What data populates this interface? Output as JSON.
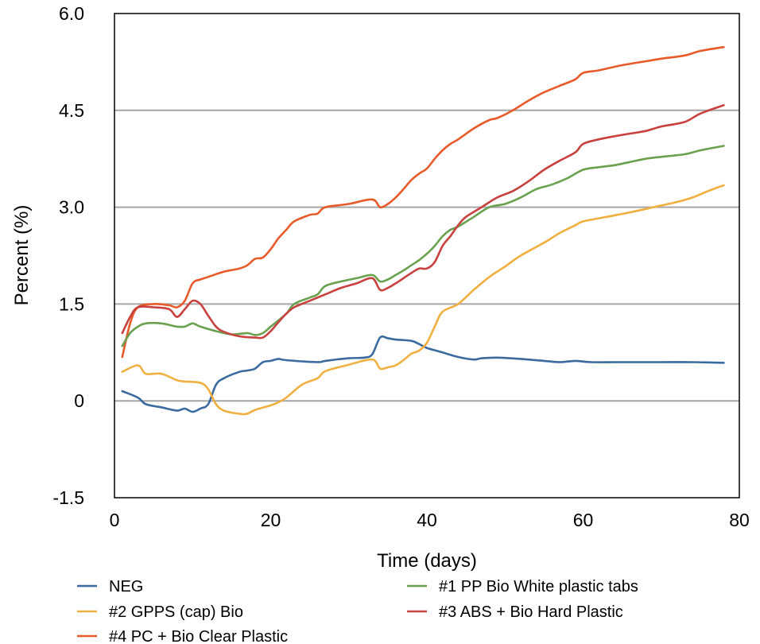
{
  "chart_data": {
    "type": "line",
    "xlabel": "Time (days)",
    "ylabel": "Percent (%)",
    "xlim": [
      0,
      80
    ],
    "ylim": [
      -1.5,
      6.0
    ],
    "x_ticks": [
      "0",
      "20",
      "40",
      "60",
      "80"
    ],
    "x_tick_values": [
      0,
      20,
      40,
      60,
      80
    ],
    "y_ticks": [
      "6.0",
      "4.5",
      "3.0",
      "1.5",
      "0",
      "-1.5"
    ],
    "y_tick_values": [
      6.0,
      4.5,
      3.0,
      1.5,
      0,
      -1.5
    ],
    "grid": "horizontal",
    "legend_position": "bottom",
    "series": [
      {
        "name": "NEG",
        "color": "#3b6aa0",
        "x": [
          1,
          3,
          4,
          6,
          8,
          9,
          10,
          11,
          12,
          13,
          14,
          16,
          17,
          18,
          19,
          20,
          21,
          22,
          26,
          27,
          30,
          32,
          33,
          34,
          35,
          36,
          38,
          39,
          40,
          42,
          44,
          46,
          47,
          49,
          52,
          55,
          57,
          59,
          61,
          65,
          70,
          74,
          78
        ],
        "y": [
          0.15,
          0.05,
          -0.05,
          -0.1,
          -0.15,
          -0.12,
          -0.17,
          -0.12,
          -0.05,
          0.25,
          0.35,
          0.45,
          0.47,
          0.5,
          0.6,
          0.62,
          0.65,
          0.63,
          0.6,
          0.62,
          0.66,
          0.67,
          0.72,
          0.98,
          0.97,
          0.95,
          0.93,
          0.88,
          0.82,
          0.75,
          0.68,
          0.64,
          0.66,
          0.67,
          0.65,
          0.62,
          0.6,
          0.62,
          0.6,
          0.6,
          0.6,
          0.6,
          0.59
        ]
      },
      {
        "name": "#2 GPPS (cap) Bio",
        "color": "#f0b040",
        "x": [
          1,
          3,
          4,
          6,
          8,
          9,
          11,
          12,
          13,
          14,
          16,
          17,
          18,
          20,
          21,
          22,
          24,
          26,
          27,
          30,
          33,
          34,
          35,
          36,
          37,
          38,
          39,
          40,
          41,
          42,
          44,
          46,
          48,
          50,
          52,
          55,
          57,
          59,
          60,
          63,
          66,
          69,
          72,
          74,
          76,
          78
        ],
        "y": [
          0.45,
          0.55,
          0.42,
          0.42,
          0.32,
          0.3,
          0.28,
          0.18,
          -0.05,
          -0.15,
          -0.2,
          -0.2,
          -0.14,
          -0.07,
          -0.02,
          0.05,
          0.25,
          0.35,
          0.46,
          0.56,
          0.64,
          0.5,
          0.52,
          0.55,
          0.63,
          0.73,
          0.78,
          0.9,
          1.15,
          1.38,
          1.5,
          1.72,
          1.92,
          2.08,
          2.25,
          2.45,
          2.6,
          2.72,
          2.78,
          2.85,
          2.92,
          3.0,
          3.08,
          3.15,
          3.25,
          3.34
        ]
      },
      {
        "name": "#4 PC + Bio Clear Plastic",
        "color": "#e85a2a",
        "x": [
          1,
          2,
          3,
          5,
          7,
          8,
          9,
          10,
          11,
          12,
          14,
          16,
          17,
          18,
          19,
          20,
          21,
          22,
          23,
          25,
          26,
          27,
          30,
          33,
          34,
          35,
          36,
          37,
          38,
          39,
          40,
          41,
          42,
          43,
          44,
          46,
          48,
          49,
          51,
          53,
          55,
          57,
          59,
          60,
          62,
          65,
          68,
          70,
          73,
          75,
          78
        ],
        "y": [
          0.68,
          1.2,
          1.45,
          1.5,
          1.48,
          1.45,
          1.55,
          1.82,
          1.88,
          1.92,
          2.0,
          2.05,
          2.1,
          2.2,
          2.22,
          2.35,
          2.52,
          2.65,
          2.78,
          2.88,
          2.9,
          3.0,
          3.05,
          3.12,
          3.0,
          3.05,
          3.15,
          3.28,
          3.42,
          3.52,
          3.6,
          3.75,
          3.88,
          3.98,
          4.05,
          4.22,
          4.35,
          4.38,
          4.5,
          4.65,
          4.78,
          4.88,
          4.98,
          5.08,
          5.12,
          5.2,
          5.26,
          5.3,
          5.35,
          5.42,
          5.48
        ]
      },
      {
        "name": "#1 PP Bio White plastic tabs",
        "color": "#6aa14f",
        "x": [
          1,
          2,
          3,
          4,
          6,
          8,
          9,
          10,
          11,
          13,
          15,
          17,
          18,
          19,
          20,
          22,
          23,
          25,
          26,
          27,
          29,
          31,
          33,
          34,
          35,
          36,
          37,
          38,
          39,
          40,
          41,
          42,
          43,
          44,
          46,
          48,
          50,
          52,
          54,
          56,
          58,
          60,
          62,
          64,
          66,
          68,
          70,
          73,
          75,
          78
        ],
        "y": [
          0.85,
          1.05,
          1.15,
          1.2,
          1.2,
          1.15,
          1.15,
          1.2,
          1.15,
          1.08,
          1.03,
          1.05,
          1.02,
          1.05,
          1.15,
          1.35,
          1.5,
          1.6,
          1.65,
          1.78,
          1.85,
          1.9,
          1.95,
          1.85,
          1.88,
          1.95,
          2.02,
          2.1,
          2.18,
          2.28,
          2.4,
          2.55,
          2.65,
          2.7,
          2.85,
          3.0,
          3.05,
          3.15,
          3.28,
          3.35,
          3.45,
          3.58,
          3.62,
          3.65,
          3.7,
          3.75,
          3.78,
          3.82,
          3.88,
          3.95
        ]
      },
      {
        "name": "#3 ABS + Bio Hard Plastic",
        "color": "#c8413e",
        "x": [
          1,
          2,
          3,
          5,
          7,
          8,
          9,
          10,
          11,
          12,
          13,
          14,
          16,
          18,
          19,
          20,
          21,
          22,
          23,
          25,
          27,
          29,
          31,
          33,
          34,
          35,
          36,
          37,
          38,
          39,
          40,
          41,
          42,
          43,
          44,
          45,
          47,
          49,
          51,
          53,
          55,
          57,
          59,
          60,
          62,
          65,
          68,
          70,
          73,
          75,
          78
        ],
        "y": [
          1.05,
          1.3,
          1.45,
          1.45,
          1.42,
          1.3,
          1.42,
          1.55,
          1.5,
          1.32,
          1.15,
          1.07,
          1.0,
          0.98,
          0.98,
          1.08,
          1.22,
          1.35,
          1.45,
          1.55,
          1.65,
          1.75,
          1.82,
          1.9,
          1.72,
          1.75,
          1.82,
          1.9,
          1.98,
          2.05,
          2.05,
          2.15,
          2.4,
          2.55,
          2.72,
          2.85,
          3.0,
          3.15,
          3.25,
          3.4,
          3.58,
          3.72,
          3.85,
          3.98,
          4.05,
          4.12,
          4.18,
          4.25,
          4.32,
          4.45,
          4.58
        ]
      }
    ]
  }
}
